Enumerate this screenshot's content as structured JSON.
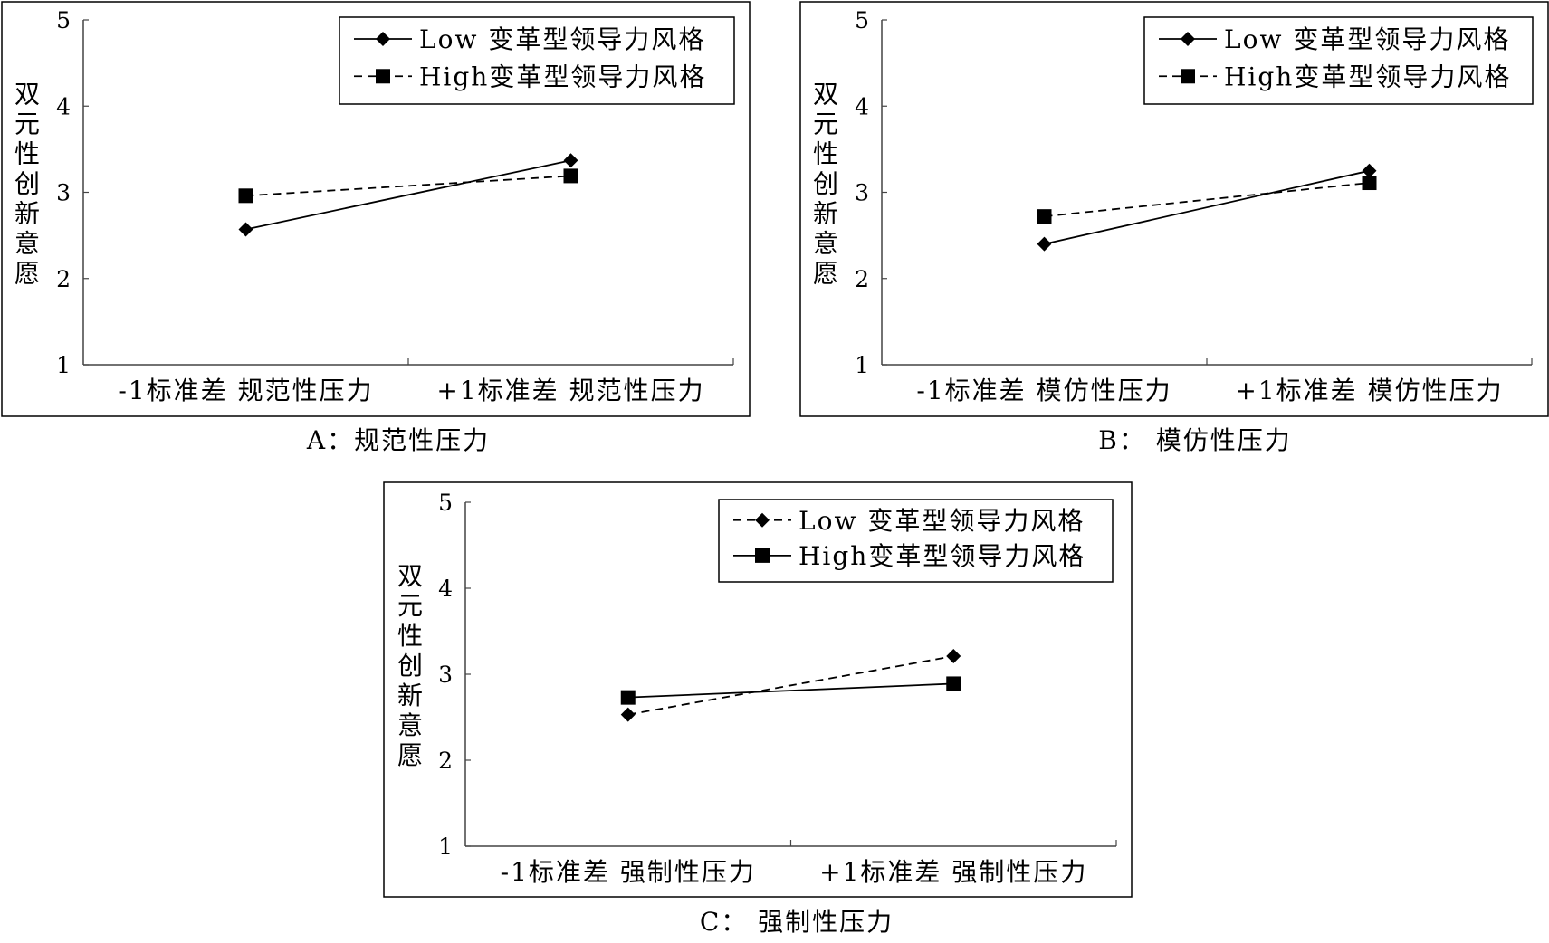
{
  "chart_data": [
    {
      "type": "line",
      "caption": "A：规范性压力",
      "ylabel": "双元性创新意愿",
      "ylim": [
        1,
        5
      ],
      "yticks": [
        1,
        2,
        3,
        4,
        5
      ],
      "categories": [
        "-1标准差 规范性压力",
        "+1标准差 规范性压力"
      ],
      "legend_position": "top-right",
      "series": [
        {
          "name": "Low 变革型领导力风格",
          "values": [
            2.57,
            3.37
          ],
          "marker": "diamond",
          "dash": "solid"
        },
        {
          "name": "High变革型领导力风格",
          "values": [
            2.96,
            3.19
          ],
          "marker": "square",
          "dash": "dashed"
        }
      ]
    },
    {
      "type": "line",
      "caption": "B：  模仿性压力",
      "ylabel": "双元性创新意愿",
      "ylim": [
        1,
        5
      ],
      "yticks": [
        1,
        2,
        3,
        4,
        5
      ],
      "categories": [
        "-1标准差 模仿性压力",
        "+1标准差 模仿性压力"
      ],
      "legend_position": "top-right",
      "series": [
        {
          "name": "Low 变革型领导力风格",
          "values": [
            2.4,
            3.25
          ],
          "marker": "diamond",
          "dash": "solid"
        },
        {
          "name": "High变革型领导力风格",
          "values": [
            2.72,
            3.11
          ],
          "marker": "square",
          "dash": "dashed"
        }
      ]
    },
    {
      "type": "line",
      "caption": "C：  强制性压力",
      "ylabel": "双元性创新意愿",
      "ylim": [
        1,
        5
      ],
      "yticks": [
        1,
        2,
        3,
        4,
        5
      ],
      "categories": [
        "-1标准差 强制性压力",
        "+1标准差 强制性压力"
      ],
      "legend_position": "top-right",
      "series": [
        {
          "name": "Low 变革型领导力风格",
          "values": [
            2.53,
            3.21
          ],
          "marker": "diamond",
          "dash": "dashed"
        },
        {
          "name": "High变革型领导力风格",
          "values": [
            2.73,
            2.89
          ],
          "marker": "square",
          "dash": "solid"
        }
      ]
    }
  ]
}
